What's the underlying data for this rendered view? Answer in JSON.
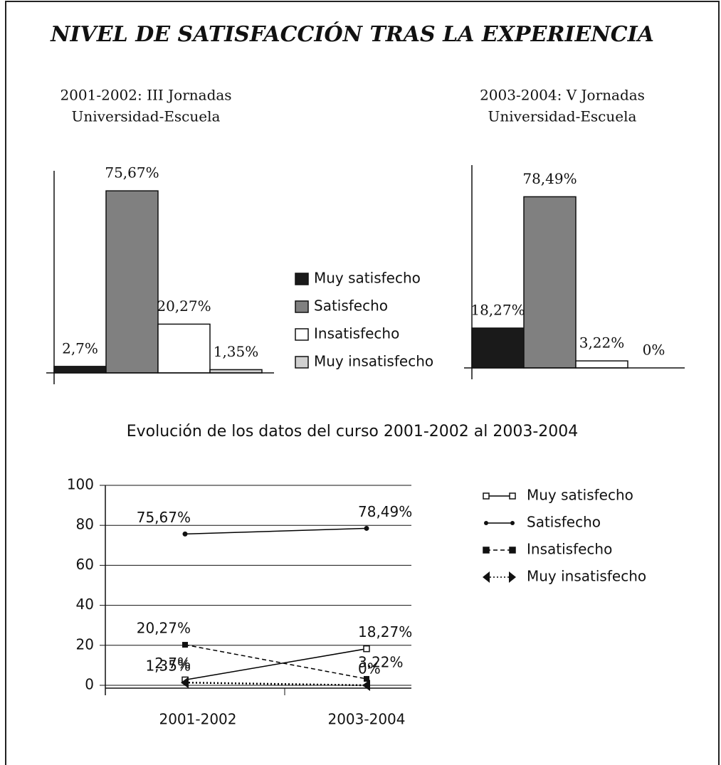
{
  "title": "NIVEL DE SATISFACCIÓN TRAS LA EXPERIENCIA",
  "legend": {
    "labels": [
      "Muy satisfecho",
      "Satisfecho",
      "Insatisfecho",
      "Muy insatisfecho"
    ],
    "colors": [
      "#1a1a1a",
      "#808080",
      "#ffffff",
      "#d0d0d0"
    ]
  },
  "chart_data": [
    {
      "type": "bar",
      "title": [
        "2001-2002: III Jornadas",
        "Universidad-Escuela"
      ],
      "values": [
        2.7,
        75.67,
        20.27,
        1.35
      ],
      "value_labels": [
        "2,7%",
        "75,67%",
        "20,27%",
        "1,35%"
      ],
      "ylim": [
        0,
        84
      ]
    },
    {
      "type": "bar",
      "title": [
        "2003-2004: V Jornadas",
        "Universidad-Escuela"
      ],
      "values": [
        18.27,
        78.49,
        3.22,
        0
      ],
      "value_labels": [
        "18,27%",
        "78,49%",
        "3,22%",
        "0%"
      ],
      "ylim": [
        0,
        93
      ]
    },
    {
      "type": "line",
      "title": "Evolución de los datos del curso 2001-2002 al 2003-2004",
      "categories": [
        "2001-2002",
        "2003-2004"
      ],
      "series": [
        {
          "name": "Muy satisfecho",
          "color": "#000000",
          "marker": "square-open",
          "dash": "solid",
          "values": [
            2.7,
            18.27
          ],
          "value_labels": [
            "2,7%",
            "18,27%"
          ]
        },
        {
          "name": "Satisfecho",
          "color": "#000000",
          "marker": "circle",
          "dash": "solid",
          "values": [
            75.67,
            78.49
          ],
          "value_labels": [
            "75,67%",
            "78,49%"
          ]
        },
        {
          "name": "Insatisfecho",
          "color": "#000000",
          "marker": "square",
          "dash": "dashed",
          "values": [
            20.27,
            3.22
          ],
          "value_labels": [
            "20,27%",
            "3,22%"
          ]
        },
        {
          "name": "Muy insatisfecho",
          "color": "#000000",
          "marker": "triangle",
          "dash": "dotted",
          "values": [
            1.35,
            0
          ],
          "value_labels": [
            "1,35%",
            "0%"
          ]
        }
      ],
      "ylim": [
        0,
        100
      ],
      "yticks": [
        0,
        20,
        40,
        60,
        80,
        100
      ],
      "grid": true,
      "legend": "right"
    }
  ]
}
